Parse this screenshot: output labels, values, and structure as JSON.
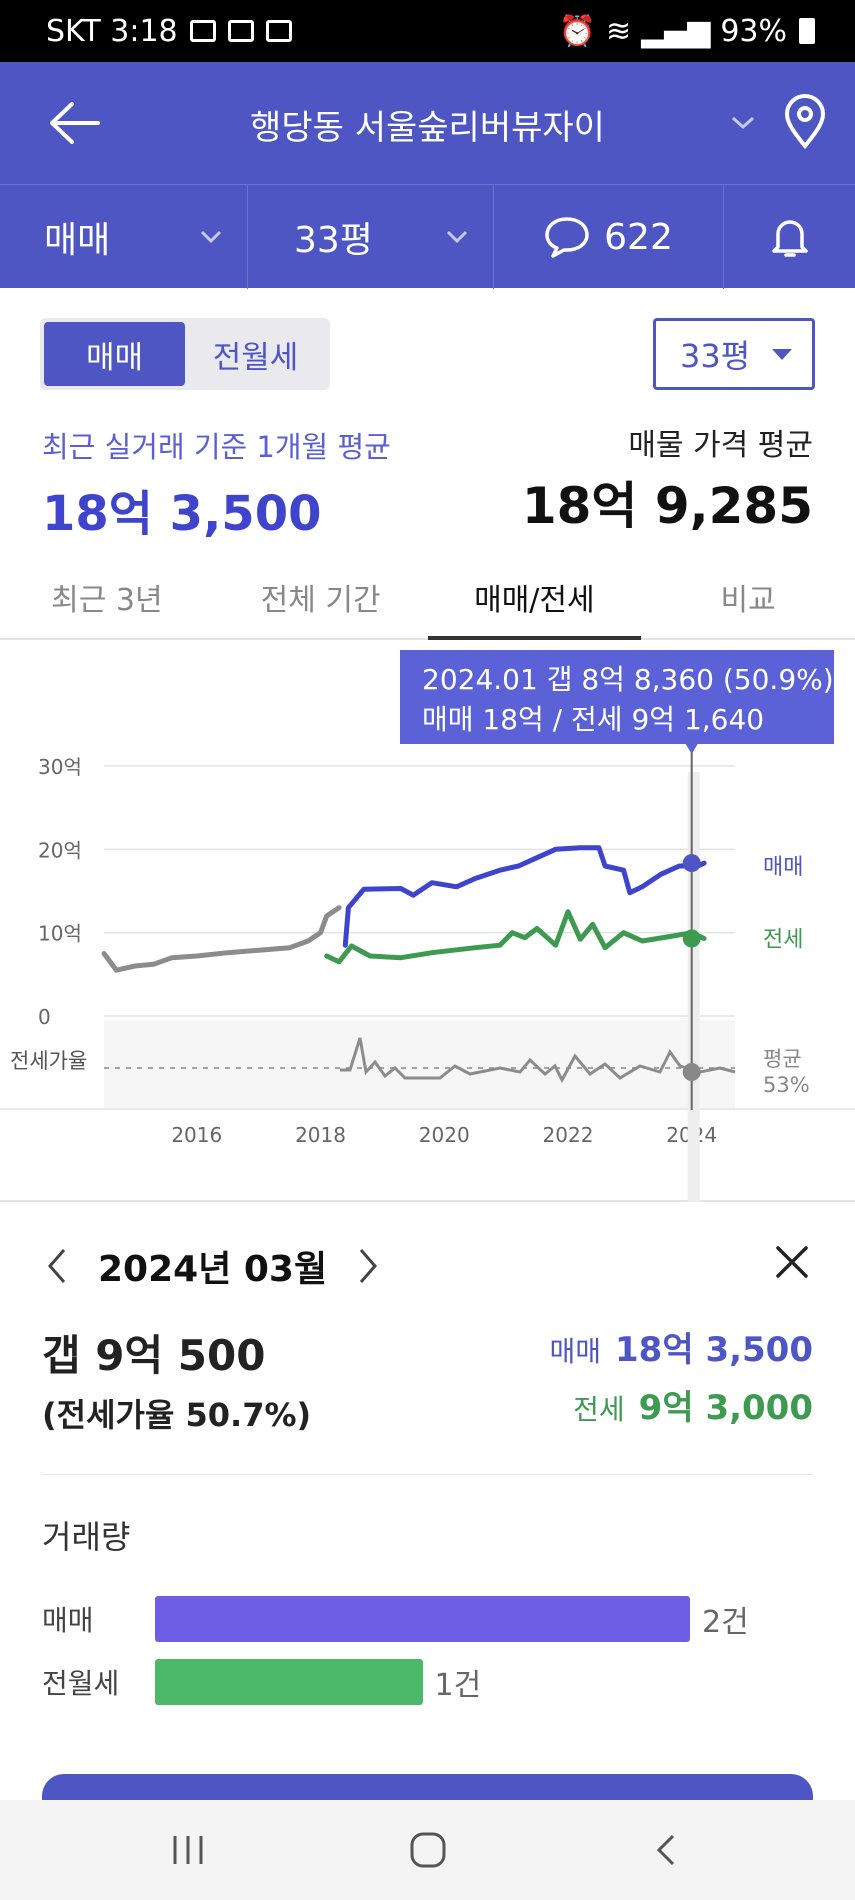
{
  "status_bar": {
    "carrier_time": "SKT 3:18",
    "battery": "93%"
  },
  "header": {
    "title": "행당동 서울숲리버뷰자이"
  },
  "filters": {
    "deal_type": "매매",
    "size": "33평",
    "comment_count": "622"
  },
  "segment": {
    "items": [
      "매매",
      "전월세"
    ],
    "active": 0
  },
  "size_select": "33평",
  "summary": {
    "avg_label": "최근 실거래 기준 1개월 평균",
    "avg_value": "18억 3,500",
    "listing_label": "매물 가격 평균",
    "listing_value": "18억 9,285"
  },
  "tabs": [
    {
      "label": "최근 3년",
      "active": false
    },
    {
      "label": "전체 기간",
      "active": false
    },
    {
      "label": "매매/전세",
      "active": true
    },
    {
      "label": "비교",
      "active": false
    }
  ],
  "chart_data": {
    "type": "line",
    "y_ticks": [
      "30억",
      "20억",
      "10억",
      "0"
    ],
    "x_ticks": [
      "2016",
      "2018",
      "2020",
      "2022",
      "2024"
    ],
    "ylim": [
      0,
      30
    ],
    "xlim": [
      2014.5,
      2024.7
    ],
    "series": [
      {
        "name": "매매",
        "color": "#3e44cc",
        "points": [
          [
            2018.4,
            8.5
          ],
          [
            2018.45,
            13
          ],
          [
            2018.7,
            15.2
          ],
          [
            2019.3,
            15.3
          ],
          [
            2019.5,
            14.5
          ],
          [
            2019.8,
            16
          ],
          [
            2020.2,
            15.5
          ],
          [
            2020.5,
            16.5
          ],
          [
            2020.9,
            17.5
          ],
          [
            2021.2,
            18
          ],
          [
            2021.5,
            19
          ],
          [
            2021.8,
            20
          ],
          [
            2022.2,
            20.2
          ],
          [
            2022.5,
            20.2
          ],
          [
            2022.6,
            18
          ],
          [
            2022.9,
            17.5
          ],
          [
            2023.0,
            14.8
          ],
          [
            2023.2,
            15.5
          ],
          [
            2023.5,
            17
          ],
          [
            2023.8,
            18
          ],
          [
            2024.1,
            18
          ],
          [
            2024.2,
            18.35
          ]
        ]
      },
      {
        "name": "전세",
        "color": "#3e9a50",
        "points": [
          [
            2018.1,
            7.2
          ],
          [
            2018.3,
            6.5
          ],
          [
            2018.5,
            8.4
          ],
          [
            2018.8,
            7.2
          ],
          [
            2019.3,
            7
          ],
          [
            2019.8,
            7.6
          ],
          [
            2020.5,
            8.2
          ],
          [
            2020.9,
            8.5
          ],
          [
            2021.1,
            10
          ],
          [
            2021.3,
            9.4
          ],
          [
            2021.5,
            10.5
          ],
          [
            2021.8,
            8.5
          ],
          [
            2022.0,
            12.5
          ],
          [
            2022.2,
            9.2
          ],
          [
            2022.4,
            11
          ],
          [
            2022.6,
            8.2
          ],
          [
            2022.9,
            10
          ],
          [
            2023.2,
            9
          ],
          [
            2023.7,
            9.6
          ],
          [
            2024.0,
            10
          ],
          [
            2024.2,
            9.3
          ]
        ]
      },
      {
        "name": "매매(과거)",
        "color": "#8c8c8c",
        "points": [
          [
            2014.5,
            7.5
          ],
          [
            2014.7,
            5.5
          ],
          [
            2015.0,
            6
          ],
          [
            2015.3,
            6.2
          ],
          [
            2015.6,
            7
          ],
          [
            2016.0,
            7.2
          ],
          [
            2016.5,
            7.6
          ],
          [
            2017.0,
            7.9
          ],
          [
            2017.5,
            8.2
          ],
          [
            2017.8,
            9
          ],
          [
            2018.0,
            10
          ],
          [
            2018.1,
            12
          ],
          [
            2018.3,
            13
          ]
        ]
      }
    ],
    "ratio_series": {
      "average_label": "평균",
      "average_value": "53%",
      "label": "전세가율"
    },
    "legend": {
      "sale": "매매",
      "jeonse": "전세"
    },
    "tooltip": {
      "line1": "2024.01  갭 8억 8,360 (50.9%)",
      "line2": "매매 18억 / 전세 9억 1,640"
    }
  },
  "detail": {
    "month": "2024년 03월",
    "gap": "갭 9억 500",
    "ratio": "(전세가율 50.7%)",
    "sale_label": "매매",
    "sale_value": "18억 3,500",
    "jeonse_label": "전세",
    "jeonse_value": "9억 3,000"
  },
  "volume": {
    "title": "거래량",
    "rows": [
      {
        "label": "매매",
        "count": "2건",
        "fraction": 1.0,
        "color": "#6e5ee6"
      },
      {
        "label": "전월세",
        "count": "1건",
        "fraction": 0.5,
        "color": "#4cb86a"
      }
    ]
  }
}
